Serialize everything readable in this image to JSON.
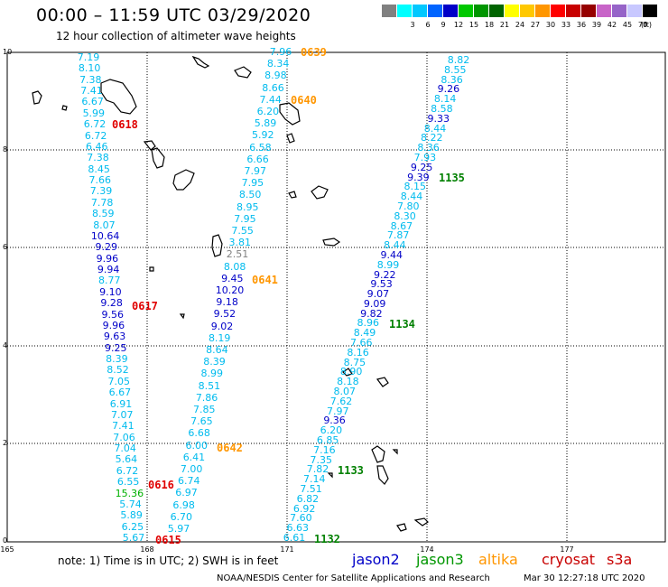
{
  "header": {
    "title": "00:00 – 11:59 UTC 03/29/2020",
    "subtitle": "12 hour collection of altimeter wave heights"
  },
  "scale": {
    "colors": [
      "#808080",
      "#00ffff",
      "#00c8ff",
      "#0064ff",
      "#0000c8",
      "#00c800",
      "#009600",
      "#006400",
      "#ffff00",
      "#ffc800",
      "#ff9600",
      "#ff0000",
      "#c80000",
      "#960000",
      "#c864c8",
      "#9664c8",
      "#c8c8ff",
      "#000000"
    ],
    "labels": [
      "3",
      "6",
      "9",
      "12",
      "15",
      "18",
      "21",
      "24",
      "27",
      "30",
      "33",
      "36",
      "39",
      "42",
      "45",
      "70"
    ],
    "unit": "(ft)"
  },
  "axes": {
    "y_labels": [
      "10",
      "8",
      "6",
      "4",
      "2",
      "0"
    ],
    "x_labels": [
      "165",
      "168",
      "171",
      "174",
      "177"
    ]
  },
  "tracks": {
    "track1": [
      "7.19",
      "8.10",
      "7.38",
      "7.41",
      "6.67",
      "5.99",
      "6.72",
      "6.72",
      "6.46",
      "7.38",
      "8.45",
      "7.66",
      "7.39",
      "7.78",
      "8.59",
      "8.07",
      "10.64",
      "9.29",
      "9.96",
      "9.94",
      "8.77",
      "9.10",
      "9.28",
      "9.56",
      "9.96",
      "9.63",
      "9.25",
      "8.39",
      "8.52",
      "7.05",
      "6.67",
      "6.91",
      "7.07",
      "7.41",
      "7.06",
      "7.04",
      "5.64",
      "6.72",
      "6.55",
      "15.36",
      "5.74",
      "5.89",
      "6.25",
      "5.67"
    ],
    "track2": [
      "7.96",
      "8.34",
      "8.98",
      "8.66",
      "7.44",
      "6.20",
      "5.89",
      "5.92",
      "6.58",
      "6.66",
      "7.97",
      "7.95",
      "8.50",
      "8.95",
      "7.95",
      "7.55",
      "3.81",
      "2.51",
      "8.08",
      "9.45",
      "10.20",
      "9.18",
      "9.52",
      "9.02",
      "8.19",
      "8.64",
      "8.39",
      "8.99",
      "8.51",
      "7.86",
      "7.85",
      "7.65",
      "6.68",
      "6.00",
      "6.41",
      "7.00",
      "6.74",
      "6.97",
      "6.98",
      "6.70",
      "5.97"
    ],
    "track3": [
      "8.82",
      "8.55",
      "8.36",
      "9.26",
      "8.14",
      "8.58",
      "9.33",
      "8.44",
      "8.22",
      "8.36",
      "7.93",
      "9.25",
      "9.39",
      "8.15",
      "8.44",
      "7.80",
      "8.30",
      "8.67",
      "7.87",
      "8.44",
      "9.44",
      "8.99",
      "9.22",
      "9.53",
      "9.07",
      "9.09",
      "9.82",
      "8.96",
      "8.49",
      "7.66",
      "8.16",
      "8.75",
      "8.90",
      "8.18",
      "8.07",
      "7.62",
      "7.97",
      "9.36",
      "6.20",
      "6.85",
      "7.16",
      "7.35",
      "7.82",
      "7.14",
      "7.51",
      "6.82",
      "6.92",
      "7.60",
      "6.63",
      "6.61"
    ]
  },
  "times": {
    "t1": "0639",
    "t2": "0640",
    "t3": "0618",
    "t4": "0641",
    "t5": "0617",
    "t6": "0642",
    "t7": "0616",
    "t8": "0615",
    "t9": "1135",
    "t10": "1134",
    "t11": "1133",
    "t12": "1132"
  },
  "footer": {
    "note": "note:  1) Time is in UTC;  2) SWH is in feet",
    "satellites": [
      "jason2",
      "jason3",
      "altika",
      "cryosat",
      "s3a"
    ],
    "sat_colors": [
      "#0000c8",
      "#009600",
      "#ff9600",
      "#c80000",
      "#c80000"
    ],
    "credit": "NOAA/NESDIS Center for Satellite Applications and Research",
    "timestamp": "Mar 30 12:27:18 UTC 2020"
  }
}
